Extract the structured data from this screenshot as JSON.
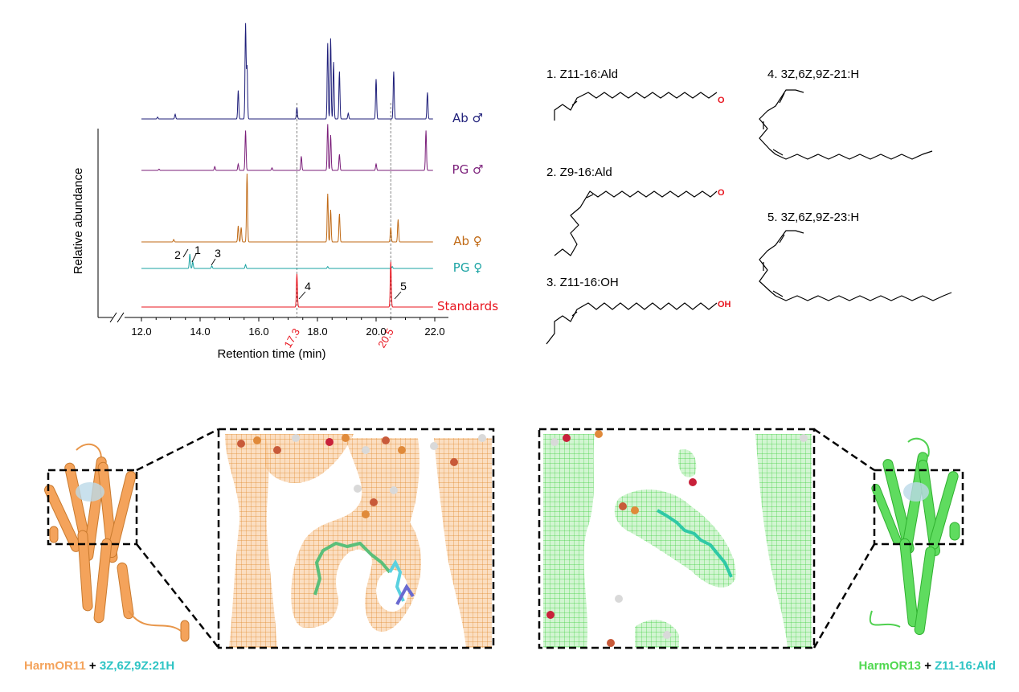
{
  "chart_data": {
    "type": "line",
    "ylabel": "Relative abundance",
    "xlabel": "Retention time (min)",
    "xlim": [
      12.0,
      22.0
    ],
    "xticks": [
      "12.0",
      "14.0",
      "16.0",
      "18.0",
      "20.0",
      "22.0"
    ],
    "xtick_values": [
      12,
      14,
      16,
      18,
      20,
      22
    ],
    "reference_lines": [
      {
        "x": 17.3,
        "label": "17.3"
      },
      {
        "x": 20.5,
        "label": "20.5"
      }
    ],
    "series": [
      {
        "name": "Ab ♂",
        "color": "#1f1f7a",
        "peaks": [
          [
            12.55,
            0.02
          ],
          [
            13.15,
            0.05
          ],
          [
            15.3,
            0.3
          ],
          [
            15.55,
            1.0
          ],
          [
            15.6,
            0.55
          ],
          [
            17.3,
            0.12
          ],
          [
            18.35,
            0.8
          ],
          [
            18.45,
            0.85
          ],
          [
            18.55,
            0.6
          ],
          [
            18.75,
            0.5
          ],
          [
            19.05,
            0.06
          ],
          [
            20.0,
            0.42
          ],
          [
            20.6,
            0.5
          ],
          [
            21.75,
            0.28
          ]
        ]
      },
      {
        "name": "PG ♂",
        "color": "#7b1f7a",
        "peaks": [
          [
            12.6,
            0.02
          ],
          [
            14.5,
            0.06
          ],
          [
            15.3,
            0.1
          ],
          [
            15.55,
            0.62
          ],
          [
            16.45,
            0.04
          ],
          [
            17.45,
            0.22
          ],
          [
            18.35,
            0.72
          ],
          [
            18.45,
            0.55
          ],
          [
            18.75,
            0.25
          ],
          [
            20.0,
            0.1
          ],
          [
            21.7,
            0.62
          ]
        ]
      },
      {
        "name": "Ab ♀",
        "color": "#c06a16",
        "peaks": [
          [
            13.1,
            0.03
          ],
          [
            15.3,
            0.2
          ],
          [
            15.4,
            0.18
          ],
          [
            15.6,
            0.85
          ],
          [
            18.35,
            0.6
          ],
          [
            18.45,
            0.4
          ],
          [
            18.75,
            0.35
          ],
          [
            20.5,
            0.18
          ],
          [
            20.75,
            0.28
          ]
        ]
      },
      {
        "name": "PG ♀",
        "color": "#1aa3a3",
        "peaks": [
          [
            13.65,
            0.45
          ],
          [
            13.75,
            0.2
          ],
          [
            14.4,
            0.08
          ],
          [
            15.55,
            0.12
          ],
          [
            18.35,
            0.06
          ],
          [
            20.55,
            0.06
          ]
        ]
      },
      {
        "name": "Standards",
        "color": "#e8141e",
        "peaks": [
          [
            17.3,
            0.55
          ],
          [
            20.5,
            0.75
          ]
        ]
      }
    ],
    "peak_labels": [
      {
        "text": "2",
        "series": 3
      },
      {
        "text": "1",
        "series": 3
      },
      {
        "text": "3",
        "series": 3
      },
      {
        "text": "4",
        "series": 4
      },
      {
        "text": "5",
        "series": 4
      }
    ]
  },
  "compounds": [
    {
      "label": "1. Z11-16:Ald",
      "group": "O"
    },
    {
      "label": "2. Z9-16:Ald",
      "group": "O"
    },
    {
      "label": "3. Z11-16:OH",
      "group": "OH"
    },
    {
      "label": "4. 3Z,6Z,9Z-21:H"
    },
    {
      "label": "5. 3Z,6Z,9Z-23:H"
    }
  ],
  "structures": {
    "left": {
      "receptor": "HarmOR11",
      "joiner": " + ",
      "ligand": "3Z,6Z,9Z:21H",
      "receptor_color": "#f4a35b",
      "ligand_color": "#2ec4c4"
    },
    "right": {
      "receptor": "HarmOR13",
      "joiner": " + ",
      "ligand": "Z11-16:Ald",
      "receptor_color": "#4fd84f",
      "ligand_color": "#2ec4c4"
    }
  }
}
